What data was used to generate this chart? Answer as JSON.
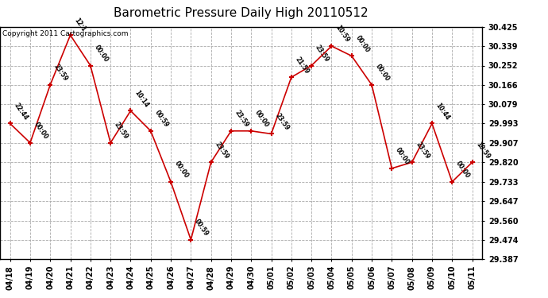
{
  "title": "Barometric Pressure Daily High 20110512",
  "copyright": "Copyright 2011 Cartographics.com",
  "x_labels": [
    "04/18",
    "04/19",
    "04/20",
    "04/21",
    "04/22",
    "04/23",
    "04/24",
    "04/25",
    "04/26",
    "04/27",
    "04/28",
    "04/29",
    "04/30",
    "05/01",
    "05/02",
    "05/03",
    "05/04",
    "05/05",
    "05/06",
    "05/07",
    "05/08",
    "05/09",
    "05/10",
    "05/11"
  ],
  "y_values": [
    29.993,
    29.907,
    30.166,
    30.388,
    30.252,
    29.907,
    30.05,
    29.96,
    29.733,
    29.474,
    29.82,
    29.96,
    29.96,
    29.947,
    30.2,
    30.252,
    30.339,
    30.295,
    30.166,
    29.793,
    29.82,
    29.993,
    29.733,
    29.82
  ],
  "point_labels": [
    "22:44",
    "00:00",
    "23:59",
    "12:1",
    "00:00",
    "23:59",
    "10:14",
    "00:59",
    "00:00",
    "00:59",
    "23:59",
    "23:59",
    "00:00",
    "23:59",
    "21:59",
    "23:59",
    "10:59",
    "00:00",
    "00:00",
    "00:00",
    "23:59",
    "10:44",
    "00:00",
    "10:59"
  ],
  "y_min": 29.387,
  "y_max": 30.425,
  "y_ticks": [
    29.387,
    29.474,
    29.56,
    29.647,
    29.733,
    29.82,
    29.907,
    29.993,
    30.079,
    30.166,
    30.252,
    30.339,
    30.425
  ],
  "line_color": "#cc0000",
  "marker_color": "#cc0000",
  "grid_color": "#aaaaaa",
  "bg_color": "#ffffff",
  "plot_bg_color": "#ffffff",
  "title_fontsize": 11,
  "tick_fontsize": 7,
  "copyright_fontsize": 6.5,
  "annot_fontsize": 5.5
}
